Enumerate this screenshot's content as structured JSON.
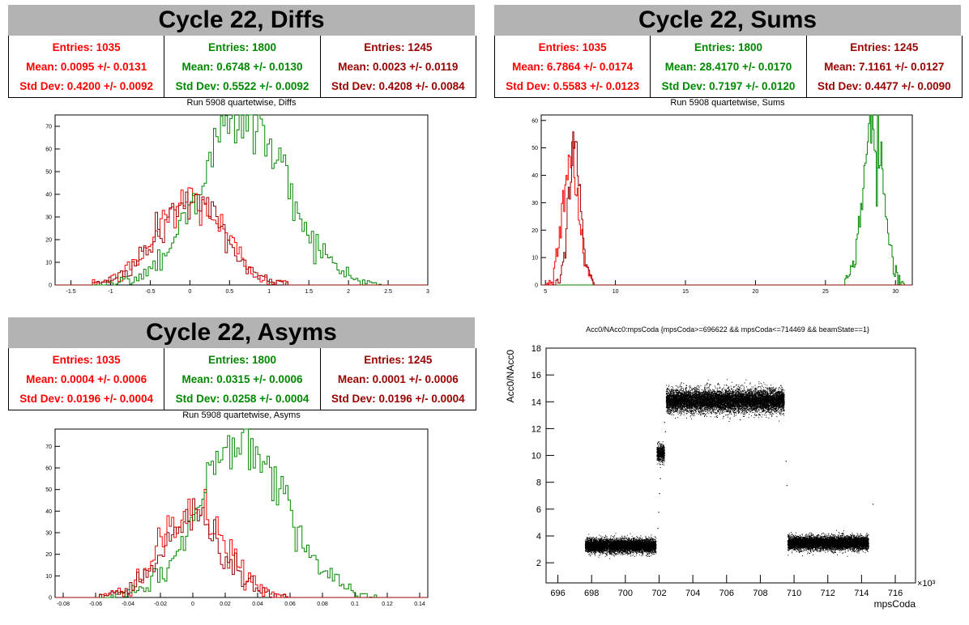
{
  "colors": {
    "red": "#ff0000",
    "green": "#008800",
    "darkred": "#990000",
    "black": "#000000"
  },
  "panels": [
    {
      "banner": "Cycle 22, Diffs",
      "subtitle": "Run 5908 quartetwise, Diffs",
      "stats": [
        {
          "entries": "Entries: 1035",
          "mean": "Mean: 0.0095 +/- 0.0131",
          "std": "Std Dev: 0.4200 +/- 0.0092"
        },
        {
          "entries": "Entries: 1800",
          "mean": "Mean: 0.6748 +/- 0.0130",
          "std": "Std Dev: 0.5522 +/- 0.0092"
        },
        {
          "entries": "Entries: 1245",
          "mean": "Mean: 0.0023 +/- 0.0119",
          "std": "Std Dev: 0.4208 +/- 0.0084"
        }
      ]
    },
    {
      "banner": "Cycle 22, Sums",
      "subtitle": "Run 5908 quartetwise, Sums",
      "stats": [
        {
          "entries": "Entries: 1035",
          "mean": "Mean: 6.7864 +/- 0.0174",
          "std": "Std Dev: 0.5583 +/- 0.0123"
        },
        {
          "entries": "Entries: 1800",
          "mean": "Mean: 28.4170 +/- 0.0170",
          "std": "Std Dev: 0.7197 +/- 0.0120"
        },
        {
          "entries": "Entries: 1245",
          "mean": "Mean: 7.1161 +/- 0.0127",
          "std": "Std Dev: 0.4477 +/- 0.0090"
        }
      ]
    },
    {
      "banner": "Cycle 22, Asyms",
      "subtitle": "Run 5908 quartetwise, Asyms",
      "stats": [
        {
          "entries": "Entries: 1035",
          "mean": "Mean: 0.0004 +/- 0.0006",
          "std": "Std Dev: 0.0196 +/- 0.0004"
        },
        {
          "entries": "Entries: 1800",
          "mean": "Mean: 0.0315 +/- 0.0006",
          "std": "Std Dev: 0.0258 +/- 0.0004"
        },
        {
          "entries": "Entries: 1245",
          "mean": "Mean: 0.0001 +/- 0.0006",
          "std": "Std Dev: 0.0196 +/- 0.0004"
        }
      ]
    },
    {
      "subtitle": "Acc0/NAcc0:mpsCoda {mpsCoda>=696622 && mpsCoda<=714469 && beamState==1}"
    }
  ],
  "chart_data": [
    {
      "type": "histogram",
      "xlim": [
        -1.7,
        3.0
      ],
      "ylim": [
        0,
        75
      ],
      "xticks": [
        -1.5,
        -1,
        -0.5,
        0,
        0.5,
        1,
        1.5,
        2,
        2.5,
        3
      ],
      "yticks": [
        0,
        10,
        20,
        30,
        40,
        50,
        60,
        70
      ],
      "series": [
        {
          "color": "red",
          "mean": 0.0095,
          "std": 0.42,
          "peak": 38
        },
        {
          "color": "green",
          "mean": 0.6748,
          "std": 0.5522,
          "peak": 74
        },
        {
          "color": "darkred",
          "mean": 0.0023,
          "std": 0.4208,
          "peak": 37
        }
      ]
    },
    {
      "type": "histogram",
      "xlim": [
        4.7,
        31.2
      ],
      "ylim": [
        0,
        62
      ],
      "xticks": [
        5,
        10,
        15,
        20,
        25,
        30
      ],
      "yticks": [
        0,
        10,
        20,
        30,
        40,
        50,
        60
      ],
      "series": [
        {
          "color": "red",
          "mean": 6.7864,
          "std": 0.5583,
          "peak": 48
        },
        {
          "color": "green",
          "mean": 28.417,
          "std": 0.7197,
          "peak": 61
        },
        {
          "color": "darkred",
          "mean": 7.1161,
          "std": 0.4477,
          "peak": 49
        }
      ]
    },
    {
      "type": "histogram",
      "xlim": [
        -0.085,
        0.145
      ],
      "ylim": [
        0,
        78
      ],
      "xticks": [
        -0.08,
        -0.06,
        -0.04,
        -0.02,
        0,
        0.02,
        0.04,
        0.06,
        0.08,
        0.1,
        0.12,
        0.14
      ],
      "yticks": [
        0,
        10,
        20,
        30,
        40,
        50,
        60,
        70
      ],
      "series": [
        {
          "color": "red",
          "mean": 0.0004,
          "std": 0.0196,
          "peak": 40
        },
        {
          "color": "green",
          "mean": 0.0315,
          "std": 0.0258,
          "peak": 76
        },
        {
          "color": "darkred",
          "mean": 0.0001,
          "std": 0.0196,
          "peak": 36
        }
      ]
    },
    {
      "type": "scatter",
      "xlabel": "mpsCoda",
      "ylabel": "Acc0/NAcc0",
      "xexp": "×10³",
      "xlim": [
        695.3,
        717.2
      ],
      "ylim": [
        0.5,
        18
      ],
      "xticks": [
        696,
        698,
        700,
        702,
        704,
        706,
        708,
        710,
        712,
        714,
        716
      ],
      "yticks": [
        2,
        4,
        6,
        8,
        10,
        12,
        14,
        16,
        18
      ],
      "segments": [
        {
          "x0": 697.6,
          "x1": 701.8,
          "y": 3.3,
          "spread": 0.45
        },
        {
          "x0": 701.85,
          "x1": 702.3,
          "y": 10.2,
          "spread": 0.55
        },
        {
          "x0": 702.4,
          "x1": 709.4,
          "y": 14.1,
          "spread": 0.75
        },
        {
          "x0": 709.6,
          "x1": 714.4,
          "y": 3.5,
          "spread": 0.45
        }
      ]
    }
  ]
}
